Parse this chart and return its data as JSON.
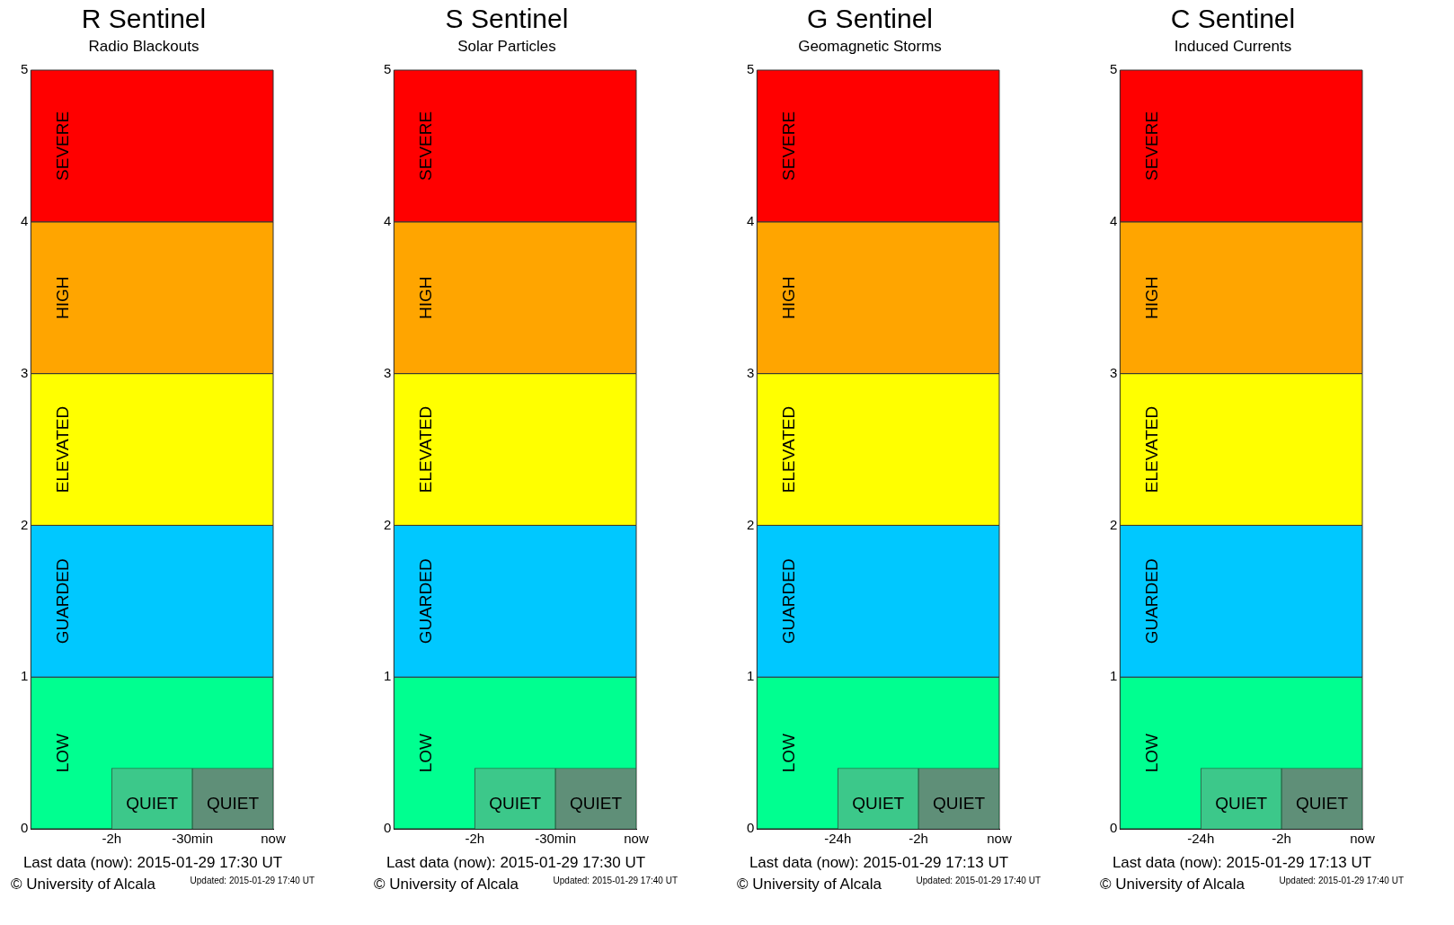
{
  "chart_data": [
    {
      "type": "bar",
      "title": "R Sentinel",
      "subtitle": "Radio Blackouts",
      "categories": [
        null,
        "-2h",
        "-30min",
        "now"
      ],
      "values": [
        null,
        null,
        0.4,
        0.4
      ],
      "colors": [
        null,
        null,
        "#3cc88a",
        "#5f8f78"
      ],
      "value_labels": [
        null,
        null,
        "QUIET",
        "QUIET"
      ],
      "ylim": [
        0,
        5
      ],
      "yticks": [
        0,
        1,
        2,
        3,
        4,
        5
      ],
      "grid": false,
      "bands": [
        {
          "axis": "y",
          "from": 0,
          "to": 1,
          "label": "LOW",
          "color": "#00ff90"
        },
        {
          "axis": "y",
          "from": 1,
          "to": 2,
          "label": "GUARDED",
          "color": "#00c8ff"
        },
        {
          "axis": "y",
          "from": 2,
          "to": 3,
          "label": "ELEVATED",
          "color": "#ffff00"
        },
        {
          "axis": "y",
          "from": 3,
          "to": 4,
          "label": "HIGH",
          "color": "#ffa500"
        },
        {
          "axis": "y",
          "from": 4,
          "to": 5,
          "label": "SEVERE",
          "color": "#ff0000"
        }
      ],
      "annotations": [
        "Last data (now): 2015-01-29 17:30 UT",
        "© University of Alcala",
        "Updated: 2015-01-29 17:40 UT"
      ]
    },
    {
      "type": "bar",
      "title": "S Sentinel",
      "subtitle": "Solar Particles",
      "categories": [
        null,
        "-2h",
        "-30min",
        "now"
      ],
      "values": [
        null,
        null,
        0.4,
        0.4
      ],
      "colors": [
        null,
        null,
        "#3cc88a",
        "#5f8f78"
      ],
      "value_labels": [
        null,
        null,
        "QUIET",
        "QUIET"
      ],
      "ylim": [
        0,
        5
      ],
      "yticks": [
        0,
        1,
        2,
        3,
        4,
        5
      ],
      "grid": false,
      "bands": [
        {
          "axis": "y",
          "from": 0,
          "to": 1,
          "label": "LOW",
          "color": "#00ff90"
        },
        {
          "axis": "y",
          "from": 1,
          "to": 2,
          "label": "GUARDED",
          "color": "#00c8ff"
        },
        {
          "axis": "y",
          "from": 2,
          "to": 3,
          "label": "ELEVATED",
          "color": "#ffff00"
        },
        {
          "axis": "y",
          "from": 3,
          "to": 4,
          "label": "HIGH",
          "color": "#ffa500"
        },
        {
          "axis": "y",
          "from": 4,
          "to": 5,
          "label": "SEVERE",
          "color": "#ff0000"
        }
      ],
      "annotations": [
        "Last data (now): 2015-01-29 17:30 UT",
        "© University of Alcala",
        "Updated: 2015-01-29 17:40 UT"
      ]
    },
    {
      "type": "bar",
      "title": "G Sentinel",
      "subtitle": "Geomagnetic Storms",
      "categories": [
        null,
        "-24h",
        "-2h",
        "now"
      ],
      "values": [
        null,
        null,
        0.4,
        0.4
      ],
      "colors": [
        null,
        null,
        "#3cc88a",
        "#5f8f78"
      ],
      "value_labels": [
        null,
        null,
        "QUIET",
        "QUIET"
      ],
      "ylim": [
        0,
        5
      ],
      "yticks": [
        0,
        1,
        2,
        3,
        4,
        5
      ],
      "grid": false,
      "bands": [
        {
          "axis": "y",
          "from": 0,
          "to": 1,
          "label": "LOW",
          "color": "#00ff90"
        },
        {
          "axis": "y",
          "from": 1,
          "to": 2,
          "label": "GUARDED",
          "color": "#00c8ff"
        },
        {
          "axis": "y",
          "from": 2,
          "to": 3,
          "label": "ELEVATED",
          "color": "#ffff00"
        },
        {
          "axis": "y",
          "from": 3,
          "to": 4,
          "label": "HIGH",
          "color": "#ffa500"
        },
        {
          "axis": "y",
          "from": 4,
          "to": 5,
          "label": "SEVERE",
          "color": "#ff0000"
        }
      ],
      "annotations": [
        "Last data (now): 2015-01-29 17:13 UT",
        "© University of Alcala",
        "Updated: 2015-01-29 17:40 UT"
      ]
    },
    {
      "type": "bar",
      "title": "C Sentinel",
      "subtitle": "Induced Currents",
      "categories": [
        null,
        "-24h",
        "-2h",
        "now"
      ],
      "values": [
        null,
        null,
        0.4,
        0.4
      ],
      "colors": [
        null,
        null,
        "#3cc88a",
        "#5f8f78"
      ],
      "value_labels": [
        null,
        null,
        "QUIET",
        "QUIET"
      ],
      "ylim": [
        0,
        5
      ],
      "yticks": [
        0,
        1,
        2,
        3,
        4,
        5
      ],
      "grid": false,
      "bands": [
        {
          "axis": "y",
          "from": 0,
          "to": 1,
          "label": "LOW",
          "color": "#00ff90"
        },
        {
          "axis": "y",
          "from": 1,
          "to": 2,
          "label": "GUARDED",
          "color": "#00c8ff"
        },
        {
          "axis": "y",
          "from": 2,
          "to": 3,
          "label": "ELEVATED",
          "color": "#ffff00"
        },
        {
          "axis": "y",
          "from": 3,
          "to": 4,
          "label": "HIGH",
          "color": "#ffa500"
        },
        {
          "axis": "y",
          "from": 4,
          "to": 5,
          "label": "SEVERE",
          "color": "#ff0000"
        }
      ],
      "annotations": [
        "Last data (now): 2015-01-29 17:13 UT",
        "© University of Alcala",
        "Updated: 2015-01-29 17:40 UT"
      ]
    }
  ]
}
